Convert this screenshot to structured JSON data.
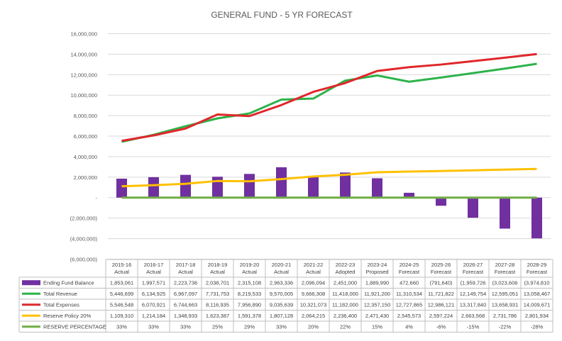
{
  "chart_data": {
    "type": "bar-line-combo",
    "title": "GENERAL FUND - 5 YR FORECAST",
    "ylim": [
      -6000000,
      16000000
    ],
    "yticks": [
      "16,000,000",
      "14,000,000",
      "12,000,000",
      "10,000,000",
      "8,000,000",
      "6,000,000",
      "4,000,000",
      "2,000,000",
      "-",
      "(2,000,000)",
      "(4,000,000)",
      "(6,000,000)"
    ],
    "ytick_values": [
      16000000,
      14000000,
      12000000,
      10000000,
      8000000,
      6000000,
      4000000,
      2000000,
      0,
      -2000000,
      -4000000,
      -6000000
    ],
    "grid": true,
    "legend": "table-below",
    "categories": [
      {
        "year": "2015-16",
        "status": "Actual"
      },
      {
        "year": "2016-17",
        "status": "Actual"
      },
      {
        "year": "2017-18",
        "status": "Actual"
      },
      {
        "year": "2018-19",
        "status": "Actual"
      },
      {
        "year": "2019-20",
        "status": "Actual"
      },
      {
        "year": "2020-21",
        "status": "Actual"
      },
      {
        "year": "2021-22",
        "status": "Actual"
      },
      {
        "year": "2022-23",
        "status": "Adopted"
      },
      {
        "year": "2023-24",
        "status": "Proposed"
      },
      {
        "year": "2024-25",
        "status": "Forecast"
      },
      {
        "year": "2025-26",
        "status": "Forecast"
      },
      {
        "year": "2026-27",
        "status": "Forecast"
      },
      {
        "year": "2027-28",
        "status": "Forecast"
      },
      {
        "year": "2028-29",
        "status": "Forecast"
      }
    ],
    "series": [
      {
        "name": "Ending Fund Balance",
        "kind": "bar",
        "color": "#7030a0",
        "values": [
          1853061,
          1997571,
          2223736,
          2038701,
          2315108,
          2963336,
          2096094,
          2451000,
          1889990,
          472660,
          -791640,
          -1959726,
          -3023606,
          -3974810
        ],
        "labels": [
          "1,853,061",
          "1,997,571",
          "2,223,736",
          "2,038,701",
          "2,315,108",
          "2,963,336",
          "2,096,094",
          "2,451,000",
          "1,889,990",
          "472,660",
          "(791,640)",
          "(1,959,726",
          "(3,023,606",
          "(3,974,810"
        ]
      },
      {
        "name": "Total Revenue",
        "kind": "line",
        "color": "#2db34a",
        "values": [
          5446699,
          6134925,
          6967097,
          7731753,
          8219533,
          9570005,
          9666308,
          11418000,
          11921200,
          11310534,
          11721822,
          12149754,
          12595051,
          13058467
        ],
        "labels": [
          "5,446,699",
          "6,134,925",
          "6,967,097",
          "7,731,753",
          "8,219,533",
          "9,570,005",
          "9,666,308",
          "11,418,000",
          "11,921,200",
          "11,310,534",
          "11,721,822",
          "12,149,754",
          "12,595,051",
          "13,058,467"
        ]
      },
      {
        "name": "Total Expenses",
        "kind": "line",
        "color": "#e0272b",
        "values": [
          5546548,
          6070921,
          6744663,
          8116935,
          7956890,
          9035639,
          10321073,
          11182000,
          12357150,
          12727865,
          12986121,
          13317840,
          13658931,
          14009671
        ],
        "labels": [
          "5,546,548",
          "6,070,921",
          "6,744,663",
          "8,116,935",
          "7,956,890",
          "9,035,639",
          "10,321,073",
          "11,182,000",
          "12,357,150",
          "12,727,865",
          "12,986,121",
          "13,317,840",
          "13,658,931",
          "14,009,671"
        ]
      },
      {
        "name": "Reserve Policy 20%",
        "kind": "line",
        "color": "#ffc000",
        "values": [
          1109310,
          1214184,
          1348933,
          1623387,
          1591378,
          1807128,
          2064215,
          2236400,
          2471430,
          2545573,
          2597224,
          2663568,
          2731786,
          2801934
        ],
        "labels": [
          "1,109,310",
          "1,214,184",
          "1,348,933",
          "1,623,387",
          "1,591,378",
          "1,807,128",
          "2,064,215",
          "2,236,400",
          "2,471,430",
          "2,545,573",
          "2,597,224",
          "2,663,568",
          "2,731,786",
          "2,801,934"
        ]
      },
      {
        "name": "RESERVE PERCENTAGE",
        "kind": "line",
        "color": "#70ad47",
        "values": [
          33,
          33,
          33,
          25,
          29,
          33,
          20,
          22,
          15,
          4,
          -6,
          -15,
          -22,
          -28
        ],
        "labels": [
          "33%",
          "33%",
          "33%",
          "25%",
          "29%",
          "33%",
          "20%",
          "22%",
          "15%",
          "4%",
          "-6%",
          "-15%",
          "-22%",
          "-28%"
        ]
      }
    ]
  }
}
